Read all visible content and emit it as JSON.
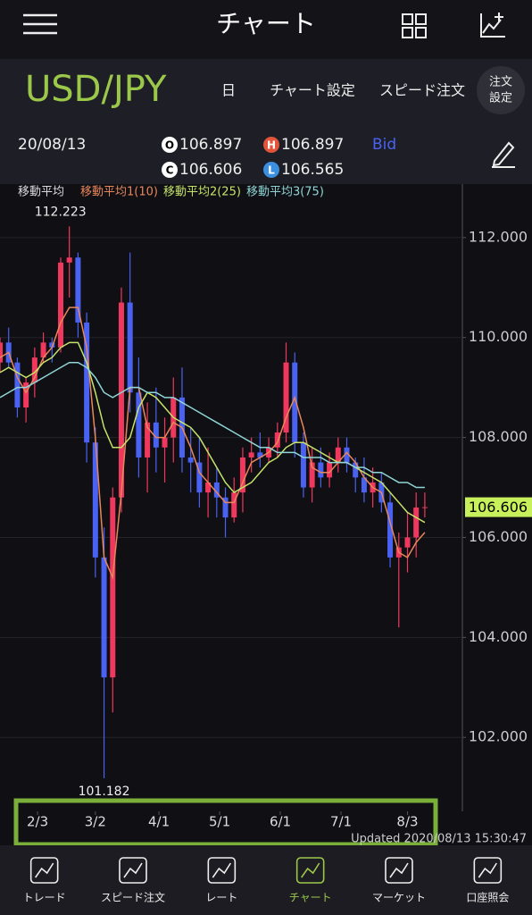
{
  "header": {
    "title": "チャート"
  },
  "toolbar": {
    "symbol": "USD/JPY",
    "period": "日",
    "chart_settings": "チャート設定",
    "speed_order": "スピード注文",
    "order_settings": [
      "注文",
      "設定"
    ]
  },
  "quote": {
    "date": "20/08/13",
    "open_badge": "O",
    "open": "106.897",
    "high_badge": "H",
    "high": "106.897",
    "side": "Bid",
    "close_badge": "C",
    "close": "106.606",
    "low_badge": "L",
    "low": "106.565"
  },
  "chart_data": {
    "type": "candlestick",
    "legend_title": "移動平均",
    "up_color": "#f0385e",
    "down_color": "#4a62f2",
    "x": [
      0,
      3,
      6,
      9,
      12,
      15,
      18,
      21,
      24,
      27,
      30,
      33,
      36,
      39,
      42,
      45,
      48,
      51,
      54,
      57,
      60,
      63,
      66,
      69,
      72,
      75,
      78,
      81,
      84,
      87,
      90,
      93,
      96,
      99,
      102,
      105,
      108,
      111,
      114,
      117,
      120,
      123,
      126,
      129,
      132,
      135,
      138,
      141,
      144,
      147
    ],
    "open": [
      109.5,
      109.9,
      109.5,
      108.6,
      109.1,
      109.6,
      109.9,
      109.8,
      111.5,
      111.6,
      110.3,
      107.9,
      105.6,
      103.2,
      106.8,
      110.7,
      108.9,
      107.6,
      108.3,
      107.8,
      108.0,
      108.8,
      107.6,
      107.5,
      106.9,
      107.1,
      106.8,
      106.4,
      106.9,
      107.6,
      107.7,
      107.6,
      107.8,
      108.1,
      109.5,
      107.9,
      107.0,
      107.5,
      107.2,
      107.5,
      107.8,
      107.5,
      107.2,
      106.9,
      107.1,
      106.7,
      105.6,
      105.8,
      106.0,
      106.6
    ],
    "high": [
      110.0,
      110.2,
      109.6,
      109.2,
      109.8,
      110.1,
      110.0,
      111.6,
      112.223,
      111.7,
      110.5,
      108.2,
      106.2,
      107.0,
      111.0,
      111.7,
      109.6,
      108.7,
      109.0,
      108.4,
      109.2,
      109.4,
      108.2,
      108.0,
      107.8,
      107.4,
      107.0,
      107.2,
      107.8,
      108.0,
      108.1,
      108.0,
      108.3,
      109.9,
      109.7,
      108.1,
      107.8,
      107.8,
      107.7,
      108.0,
      108.0,
      107.6,
      107.6,
      107.4,
      107.3,
      106.9,
      106.1,
      106.5,
      106.9,
      106.9
    ],
    "low": [
      109.3,
      109.4,
      108.4,
      108.3,
      108.8,
      109.5,
      109.5,
      109.7,
      110.8,
      110.0,
      107.5,
      105.2,
      101.182,
      102.5,
      106.5,
      108.5,
      107.2,
      106.9,
      107.3,
      107.1,
      107.5,
      107.3,
      106.9,
      106.6,
      106.4,
      106.4,
      106.0,
      106.3,
      106.5,
      107.3,
      107.4,
      107.5,
      107.6,
      107.9,
      107.6,
      106.8,
      106.7,
      107.0,
      107.0,
      107.3,
      107.3,
      106.9,
      106.7,
      106.6,
      106.5,
      105.4,
      104.2,
      105.3,
      105.6,
      106.4
    ],
    "close": [
      109.9,
      109.5,
      108.6,
      109.1,
      109.6,
      109.9,
      109.8,
      111.5,
      111.6,
      110.3,
      107.9,
      105.6,
      103.2,
      106.8,
      110.7,
      108.9,
      107.6,
      108.3,
      107.8,
      108.0,
      108.8,
      107.6,
      107.5,
      106.9,
      107.1,
      106.8,
      106.4,
      106.9,
      107.6,
      107.7,
      107.6,
      107.8,
      108.1,
      109.5,
      107.9,
      107.0,
      107.5,
      107.2,
      107.5,
      107.8,
      107.5,
      107.2,
      106.9,
      107.1,
      106.7,
      105.6,
      105.8,
      106.0,
      106.6,
      106.606
    ],
    "series": [
      {
        "name": "移動平均1(10)",
        "color": "#e8875a",
        "values": [
          109.6,
          109.7,
          109.2,
          108.9,
          109.2,
          109.6,
          109.8,
          110.3,
          110.6,
          110.6,
          109.8,
          108.0,
          105.6,
          105.2,
          106.9,
          109.0,
          109.0,
          108.2,
          108.0,
          108.0,
          108.3,
          108.2,
          107.8,
          107.3,
          107.1,
          106.9,
          106.7,
          106.7,
          107.1,
          107.5,
          107.6,
          107.7,
          107.9,
          108.4,
          108.8,
          108.2,
          107.4,
          107.3,
          107.3,
          107.5,
          107.7,
          107.5,
          107.2,
          107.0,
          106.9,
          106.3,
          105.7,
          105.6,
          105.9,
          106.1
        ]
      },
      {
        "name": "移動平均2(25)",
        "color": "#c6e36a",
        "values": [
          109.3,
          109.4,
          109.3,
          109.2,
          109.3,
          109.5,
          109.6,
          109.8,
          109.9,
          109.9,
          109.5,
          108.9,
          108.2,
          107.8,
          107.8,
          108.0,
          108.6,
          108.9,
          108.8,
          108.6,
          108.4,
          108.3,
          108.2,
          108.0,
          107.7,
          107.4,
          107.1,
          106.9,
          107.0,
          107.1,
          107.3,
          107.5,
          107.6,
          107.8,
          107.9,
          107.9,
          107.8,
          107.7,
          107.6,
          107.5,
          107.5,
          107.4,
          107.3,
          107.2,
          107.1,
          106.9,
          106.7,
          106.5,
          106.4,
          106.3
        ]
      },
      {
        "name": "移動平均3(75)",
        "color": "#8fd6d6",
        "values": [
          108.8,
          108.9,
          109.0,
          109.0,
          109.1,
          109.2,
          109.3,
          109.4,
          109.5,
          109.5,
          109.4,
          109.2,
          108.9,
          108.8,
          108.9,
          109.0,
          109.0,
          108.9,
          108.9,
          108.8,
          108.8,
          108.7,
          108.6,
          108.5,
          108.4,
          108.3,
          108.2,
          108.1,
          108.0,
          107.9,
          107.8,
          107.8,
          107.7,
          107.7,
          107.7,
          107.6,
          107.6,
          107.6,
          107.5,
          107.5,
          107.5,
          107.4,
          107.4,
          107.3,
          107.3,
          107.2,
          107.1,
          107.1,
          107.0,
          107.0
        ]
      }
    ],
    "xlim": [
      0,
      160
    ],
    "xticks": [
      {
        "value": 13,
        "label": "2/3"
      },
      {
        "value": 33,
        "label": "3/2"
      },
      {
        "value": 55,
        "label": "4/1"
      },
      {
        "value": 76,
        "label": "5/1"
      },
      {
        "value": 97,
        "label": "6/1"
      },
      {
        "value": 118,
        "label": "7/1"
      },
      {
        "value": 141,
        "label": "8/3"
      }
    ],
    "ylim": [
      100.52,
      113.07
    ],
    "yticks": [
      {
        "value": 102,
        "label": "102.000"
      },
      {
        "value": 104,
        "label": "104.000"
      },
      {
        "value": 106,
        "label": "106.000"
      },
      {
        "value": 108,
        "label": "108.000"
      },
      {
        "value": 110,
        "label": "110.000"
      },
      {
        "value": 112,
        "label": "112.000"
      }
    ],
    "grid": true,
    "updated": "Updated  2020/08/13 15:30:47"
  },
  "tabs": [
    "トレード",
    "スピード注文",
    "レート",
    "チャート",
    "マーケット",
    "口座照会"
  ],
  "active_tab": 3
}
